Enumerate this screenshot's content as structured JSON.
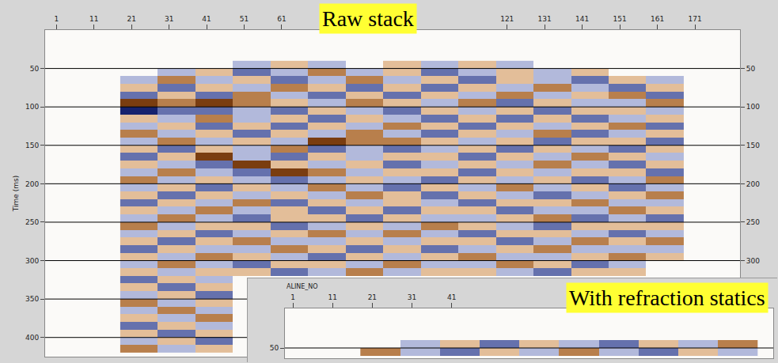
{
  "chart_data": [
    {
      "type": "heatmap",
      "title": "Raw stack",
      "ylabel": "Time (ms)",
      "x": [
        23,
        33,
        43,
        53,
        63,
        73,
        83,
        93,
        103,
        113,
        123,
        133,
        143,
        153,
        163
      ],
      "y": [
        45,
        55,
        65,
        75,
        85,
        95,
        105,
        115,
        125,
        135,
        145,
        155,
        165,
        175,
        185,
        195,
        205,
        215,
        225,
        235,
        245,
        255,
        265,
        275,
        285,
        295,
        305,
        315,
        325,
        335,
        345,
        355,
        365,
        375,
        385,
        395,
        405,
        415
      ],
      "z": [
        [
          null,
          null,
          null,
          1,
          -1,
          1,
          0,
          -1,
          1,
          -1,
          1,
          null,
          null,
          null,
          null
        ],
        [
          null,
          1,
          -1,
          2,
          1,
          -2,
          1,
          -1,
          2,
          1,
          -1,
          1,
          -1,
          null,
          null
        ],
        [
          1,
          -2,
          1,
          -1,
          2,
          1,
          -2,
          1,
          -1,
          2,
          -1,
          1,
          2,
          -1,
          1
        ],
        [
          -1,
          2,
          -1,
          1,
          -2,
          -1,
          2,
          -1,
          2,
          -1,
          1,
          -2,
          1,
          2,
          -1
        ],
        [
          2,
          -1,
          2,
          -2,
          1,
          2,
          -1,
          2,
          -1,
          1,
          -2,
          1,
          -1,
          -2,
          2
        ],
        [
          -3,
          -2,
          -3,
          -2,
          -1,
          1,
          -2,
          -1,
          1,
          -2,
          2,
          -1,
          1,
          1,
          -2
        ],
        [
          3,
          2,
          2,
          1,
          2,
          -1,
          1,
          2,
          -1,
          1,
          -1,
          2,
          -1,
          -1,
          1
        ],
        [
          -1,
          1,
          -2,
          1,
          -1,
          2,
          -1,
          1,
          2,
          -1,
          2,
          -1,
          2,
          1,
          -1
        ],
        [
          1,
          -1,
          2,
          -1,
          2,
          -1,
          1,
          -2,
          -1,
          2,
          -1,
          1,
          -1,
          -2,
          2
        ],
        [
          -2,
          1,
          -1,
          2,
          -1,
          1,
          -2,
          1,
          2,
          -1,
          1,
          -2,
          2,
          1,
          -1
        ],
        [
          1,
          -2,
          1,
          -1,
          1,
          -3,
          -2,
          -2,
          -1,
          1,
          -1,
          2,
          -1,
          -1,
          2
        ],
        [
          -1,
          2,
          -1,
          1,
          -2,
          2,
          1,
          2,
          1,
          -1,
          2,
          -1,
          1,
          2,
          -1
        ],
        [
          2,
          -1,
          -3,
          1,
          2,
          -1,
          1,
          -1,
          -1,
          2,
          -1,
          1,
          -2,
          -1,
          1
        ],
        [
          -1,
          1,
          2,
          -3,
          -1,
          1,
          -1,
          2,
          1,
          -1,
          1,
          -2,
          1,
          2,
          -1
        ],
        [
          1,
          -2,
          1,
          2,
          -3,
          -2,
          1,
          -1,
          -1,
          2,
          -1,
          1,
          -1,
          -1,
          2
        ],
        [
          -2,
          1,
          -1,
          1,
          2,
          1,
          -1,
          1,
          2,
          -1,
          1,
          -1,
          2,
          1,
          -2
        ],
        [
          1,
          -1,
          2,
          -1,
          1,
          -2,
          1,
          2,
          -1,
          1,
          -2,
          1,
          -1,
          2,
          1
        ],
        [
          -1,
          2,
          -1,
          1,
          -1,
          1,
          -2,
          -1,
          2,
          -1,
          1,
          2,
          1,
          -1,
          -2
        ],
        [
          2,
          -1,
          1,
          -2,
          2,
          -1,
          1,
          -1,
          1,
          2,
          -1,
          -1,
          -2,
          1,
          1
        ],
        [
          -1,
          1,
          -2,
          1,
          -1,
          2,
          -1,
          2,
          -1,
          -1,
          2,
          1,
          1,
          -2,
          -1
        ],
        [
          1,
          -2,
          1,
          2,
          -1,
          -1,
          2,
          -1,
          1,
          1,
          -1,
          -2,
          2,
          1,
          2
        ],
        [
          -2,
          1,
          -1,
          -1,
          2,
          1,
          -1,
          1,
          -2,
          -1,
          1,
          2,
          -1,
          -1,
          -1
        ],
        [
          1,
          -1,
          2,
          1,
          -1,
          -2,
          1,
          -2,
          1,
          2,
          -1,
          -1,
          1,
          2,
          1
        ],
        [
          -1,
          2,
          -1,
          -2,
          1,
          1,
          -1,
          1,
          -1,
          -1,
          2,
          1,
          -2,
          -1,
          -2
        ],
        [
          2,
          -1,
          1,
          1,
          -2,
          -1,
          2,
          -1,
          2,
          1,
          -1,
          -2,
          1,
          1,
          1
        ],
        [
          -1,
          1,
          -2,
          -1,
          1,
          2,
          -1,
          1,
          -1,
          -2,
          1,
          1,
          -1,
          -2,
          -1
        ],
        [
          1,
          -2,
          1,
          2,
          -1,
          -1,
          1,
          -2,
          1,
          1,
          -2,
          -1,
          2,
          1,
          null
        ],
        [
          -1,
          1,
          -1,
          -1,
          2,
          1,
          -2,
          1,
          -1,
          -1,
          1,
          2,
          -1,
          -1,
          null
        ],
        [
          2,
          -1,
          1,
          null,
          null,
          null,
          null,
          null,
          null,
          null,
          null,
          null,
          null,
          null,
          null
        ],
        [
          -1,
          2,
          -1,
          null,
          null,
          null,
          null,
          null,
          null,
          null,
          null,
          null,
          null,
          null,
          null
        ],
        [
          1,
          -1,
          2,
          null,
          null,
          null,
          null,
          null,
          null,
          null,
          null,
          null,
          null,
          null,
          null
        ],
        [
          -2,
          1,
          -1,
          null,
          null,
          null,
          null,
          null,
          null,
          null,
          null,
          null,
          null,
          null,
          null
        ],
        [
          1,
          -2,
          1,
          null,
          null,
          null,
          null,
          null,
          null,
          null,
          null,
          null,
          null,
          null,
          null
        ],
        [
          -1,
          1,
          -2,
          null,
          null,
          null,
          null,
          null,
          null,
          null,
          null,
          null,
          null,
          null,
          null
        ],
        [
          2,
          -1,
          1,
          null,
          null,
          null,
          null,
          null,
          null,
          null,
          null,
          null,
          null,
          null,
          null
        ],
        [
          -1,
          2,
          -1,
          null,
          null,
          null,
          null,
          null,
          null,
          null,
          null,
          null,
          null,
          null,
          null
        ],
        [
          1,
          -1,
          2,
          null,
          null,
          null,
          null,
          null,
          null,
          null,
          null,
          null,
          null,
          null,
          null
        ],
        [
          -2,
          1,
          -1,
          null,
          null,
          null,
          null,
          null,
          null,
          null,
          null,
          null,
          null,
          null,
          null
        ]
      ],
      "zlim": [
        -3,
        3
      ],
      "xlim": [
        -2,
        183
      ],
      "xticks": [
        1,
        11,
        21,
        31,
        41,
        51,
        61,
        121,
        131,
        141,
        151,
        161,
        171
      ],
      "ylim": [
        0,
        425
      ],
      "yticks": [
        50,
        100,
        150,
        200,
        250,
        300,
        350,
        400
      ],
      "grid": true
    },
    {
      "type": "heatmap",
      "title": "With refraction statics",
      "xlabel": "ALINE_NO",
      "x": [
        23,
        33,
        43,
        53,
        63,
        73,
        83,
        93,
        103,
        113
      ],
      "y": [
        45,
        55
      ],
      "z": [
        [
          null,
          1,
          -1,
          2,
          -1,
          1,
          2,
          -1,
          1,
          -2
        ],
        [
          -2,
          1,
          2,
          -1,
          1,
          -2,
          1,
          2,
          -1,
          1
        ]
      ],
      "zlim": [
        -3,
        3
      ],
      "xlim": [
        -1,
        122
      ],
      "xticks": [
        1,
        11,
        21,
        31,
        41
      ],
      "ylim": [
        0,
        63
      ],
      "yticks": [
        50
      ],
      "grid": true
    }
  ]
}
